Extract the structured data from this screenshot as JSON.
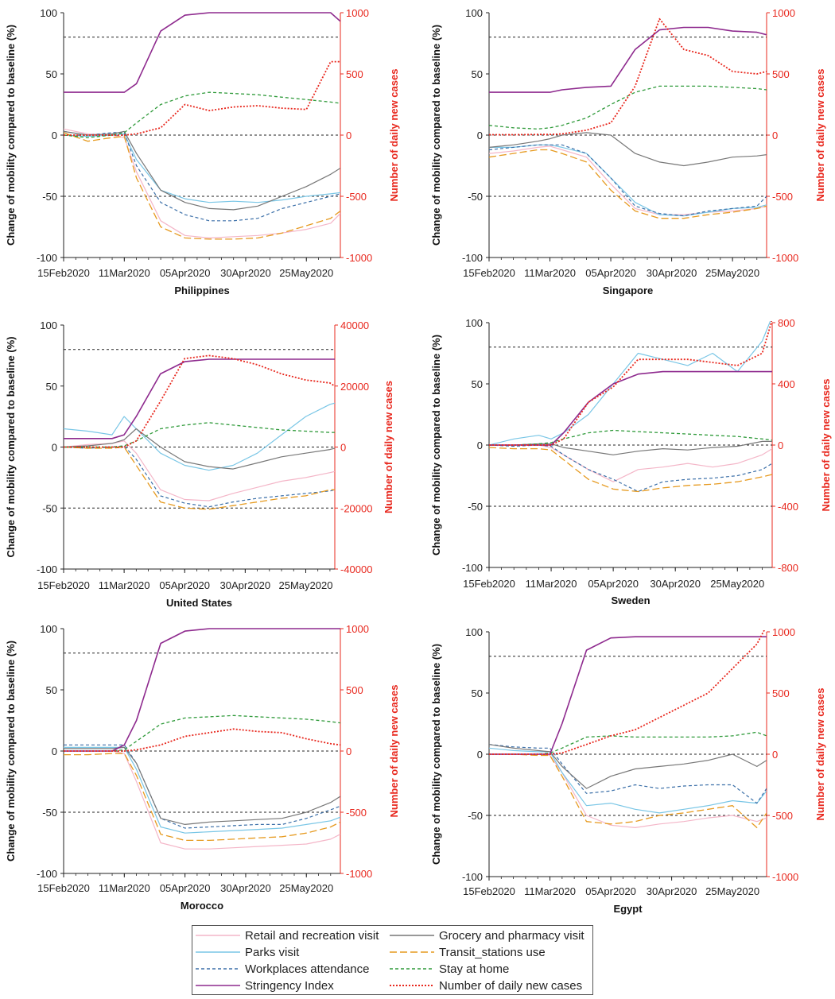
{
  "series_styles": [
    {
      "key": "retail",
      "color": "#f4b6c8",
      "dash": "",
      "width": 1.2
    },
    {
      "key": "parks",
      "color": "#79c6e6",
      "dash": "",
      "width": 1.2
    },
    {
      "key": "workplaces",
      "color": "#3b6fa8",
      "dash": "4,3",
      "width": 1.2
    },
    {
      "key": "stringency",
      "color": "#8e2a8e",
      "dash": "",
      "width": 1.6
    },
    {
      "key": "grocery",
      "color": "#777777",
      "dash": "",
      "width": 1.2
    },
    {
      "key": "transit",
      "color": "#e69a1f",
      "dash": "9,4",
      "width": 1.3
    },
    {
      "key": "home",
      "color": "#2f9a3a",
      "dash": "4,3",
      "width": 1.3
    },
    {
      "key": "cases",
      "color": "#e8281e",
      "dash": "2,2",
      "width": 1.8
    }
  ],
  "legend": {
    "items": [
      {
        "label": "Retail and recreation visit",
        "color": "#f4b6c8",
        "dash": ""
      },
      {
        "label": "Grocery and pharmacy visit",
        "color": "#777777",
        "dash": ""
      },
      {
        "label": "Parks visit",
        "color": "#79c6e6",
        "dash": ""
      },
      {
        "label": "Transit_stations use",
        "color": "#e69a1f",
        "dash": "9,4"
      },
      {
        "label": "Workplaces attendance",
        "color": "#3b6fa8",
        "dash": "4,3"
      },
      {
        "label": "Stay at home",
        "color": "#2f9a3a",
        "dash": "4,3"
      },
      {
        "label": "Stringency Index",
        "color": "#8e2a8e",
        "dash": ""
      },
      {
        "label": "Number of daily new cases",
        "color": "#e8281e",
        "dash": "2,2"
      }
    ]
  },
  "chart_data": [
    {
      "type": "line",
      "title": "Philippines",
      "ylabel": "Change of mobility compared to baseline (%)",
      "y2label": "Number of daily new cases",
      "x_ticks": [
        "15Feb2020",
        "11Mar2020",
        "05Apr2020",
        "30Apr2020",
        "25May2020"
      ],
      "x": [
        0,
        10,
        20,
        25,
        30,
        40,
        50,
        60,
        70,
        80,
        90,
        100,
        110,
        114
      ],
      "ylim": [
        -100,
        100
      ],
      "y2lim": [
        -1000,
        1000
      ],
      "yticks": [
        -100,
        -50,
        0,
        50,
        100
      ],
      "y2ticks": [
        -1000,
        -500,
        0,
        500,
        1000
      ],
      "hlines": [
        80,
        0,
        -50
      ],
      "series": {
        "retail": [
          5,
          1,
          0,
          -2,
          -30,
          -70,
          -82,
          -84,
          -83,
          -82,
          -80,
          -77,
          -72,
          -64
        ],
        "grocery": [
          3,
          0,
          1,
          3,
          -15,
          -45,
          -55,
          -60,
          -61,
          -58,
          -50,
          -42,
          -32,
          -27
        ],
        "parks": [
          0,
          -1,
          0,
          1,
          -20,
          -45,
          -52,
          -55,
          -54,
          -55,
          -53,
          -50,
          -48,
          -47
        ],
        "transit": [
          2,
          -5,
          -2,
          -1,
          -35,
          -75,
          -84,
          -85,
          -85,
          -84,
          -80,
          -74,
          -68,
          -62
        ],
        "workplaces": [
          3,
          0,
          2,
          2,
          -25,
          -55,
          -65,
          -70,
          -70,
          -68,
          -60,
          -55,
          -50,
          -48
        ],
        "home": [
          0,
          -2,
          0,
          2,
          10,
          25,
          32,
          35,
          34,
          33,
          31,
          29,
          27,
          26
        ],
        "stringency": [
          35,
          35,
          35,
          35,
          42,
          85,
          98,
          100,
          100,
          100,
          100,
          100,
          100,
          93
        ],
        "cases": [
          0,
          0,
          0,
          0,
          10,
          60,
          250,
          200,
          230,
          240,
          220,
          210,
          600,
          600
        ]
      }
    },
    {
      "type": "line",
      "title": "Singapore",
      "ylabel": "Change of mobility compared to baseline (%)",
      "y2label": "Number of daily new cases",
      "x_ticks": [
        "15Feb2020",
        "11Mar2020",
        "05Apr2020",
        "30Apr2020",
        "25May2020"
      ],
      "x": [
        0,
        10,
        20,
        25,
        30,
        40,
        50,
        60,
        70,
        80,
        90,
        100,
        110,
        114
      ],
      "ylim": [
        -100,
        100
      ],
      "y2lim": [
        -1000,
        1000
      ],
      "yticks": [
        -100,
        -50,
        0,
        50,
        100
      ],
      "y2ticks": [
        -1000,
        -500,
        0,
        500,
        1000
      ],
      "hlines": [
        80,
        0,
        -50
      ],
      "series": {
        "retail": [
          -15,
          -13,
          -10,
          -9,
          -12,
          -18,
          -40,
          -60,
          -65,
          -65,
          -63,
          -62,
          -60,
          -58
        ],
        "grocery": [
          -10,
          -8,
          -5,
          -3,
          0,
          2,
          0,
          -15,
          -22,
          -25,
          -22,
          -18,
          -17,
          -16
        ],
        "parks": [
          -10,
          -10,
          -8,
          -8,
          -10,
          -15,
          -35,
          -55,
          -65,
          -66,
          -63,
          -60,
          -59,
          -57
        ],
        "transit": [
          -18,
          -15,
          -12,
          -12,
          -15,
          -22,
          -45,
          -62,
          -68,
          -68,
          -65,
          -63,
          -60,
          -58
        ],
        "workplaces": [
          -12,
          -10,
          -8,
          -8,
          -8,
          -15,
          -35,
          -58,
          -64,
          -66,
          -62,
          -60,
          -58,
          -50
        ],
        "home": [
          8,
          6,
          5,
          6,
          8,
          14,
          25,
          35,
          40,
          40,
          40,
          39,
          38,
          37
        ],
        "stringency": [
          35,
          35,
          35,
          35,
          37,
          39,
          40,
          70,
          86,
          88,
          88,
          85,
          84,
          82
        ],
        "cases": [
          3,
          3,
          5,
          5,
          10,
          40,
          100,
          400,
          950,
          700,
          650,
          520,
          500,
          520
        ]
      }
    },
    {
      "type": "line",
      "title": "United States",
      "ylabel": "Change of mobility compared to baseline (%)",
      "y2label": "Number of daily new cases",
      "x_ticks": [
        "15Feb2020",
        "11Mar2020",
        "05Apr2020",
        "30Apr2020",
        "25May2020"
      ],
      "x": [
        0,
        10,
        20,
        25,
        30,
        40,
        50,
        60,
        70,
        80,
        90,
        100,
        110,
        112
      ],
      "ylim": [
        -100,
        100
      ],
      "y2lim": [
        -40000,
        40000
      ],
      "yticks": [
        -100,
        -50,
        0,
        50,
        100
      ],
      "y2ticks": [
        -40000,
        -20000,
        0,
        20000,
        40000
      ],
      "hlines": [
        80,
        0,
        -50
      ],
      "series": {
        "retail": [
          0,
          2,
          3,
          5,
          -5,
          -35,
          -43,
          -44,
          -38,
          -33,
          -28,
          -25,
          -21,
          -20
        ],
        "grocery": [
          0,
          1,
          3,
          6,
          15,
          0,
          -12,
          -16,
          -18,
          -13,
          -8,
          -5,
          -2,
          -1
        ],
        "parks": [
          15,
          13,
          10,
          25,
          15,
          -5,
          -15,
          -19,
          -15,
          -5,
          10,
          25,
          35,
          36
        ],
        "transit": [
          0,
          -1,
          -1,
          0,
          -15,
          -45,
          -50,
          -51,
          -48,
          -45,
          -42,
          -40,
          -35,
          -35
        ],
        "workplaces": [
          0,
          -1,
          0,
          1,
          -10,
          -40,
          -46,
          -49,
          -45,
          -42,
          -40,
          -38,
          -36,
          -35
        ],
        "home": [
          0,
          0,
          0,
          1,
          5,
          15,
          18,
          20,
          18,
          16,
          14,
          13,
          12,
          12
        ],
        "stringency": [
          7,
          7,
          7,
          10,
          25,
          60,
          70,
          72,
          72,
          72,
          72,
          72,
          72,
          72
        ],
        "cases": [
          0,
          0,
          0,
          0,
          2000,
          15000,
          29000,
          30000,
          29000,
          27000,
          24000,
          22000,
          21000,
          20000
        ]
      }
    },
    {
      "type": "line",
      "title": "Sweden",
      "ylabel": "Change of mobility compared to baseline (%)",
      "y2label": "Number of daily new cases",
      "x_ticks": [
        "15Feb2020",
        "11Mar2020",
        "05Apr2020",
        "30Apr2020",
        "25May2020"
      ],
      "x": [
        0,
        10,
        20,
        25,
        30,
        40,
        50,
        60,
        70,
        80,
        90,
        100,
        110,
        114
      ],
      "ylim": [
        -100,
        100
      ],
      "y2lim": [
        -800,
        800
      ],
      "yticks": [
        -100,
        -50,
        0,
        50,
        100
      ],
      "y2ticks": [
        -800,
        -400,
        0,
        400,
        800
      ],
      "hlines": [
        80,
        0,
        -50
      ],
      "series": {
        "retail": [
          0,
          0,
          0,
          -2,
          -8,
          -20,
          -30,
          -20,
          -18,
          -15,
          -18,
          -15,
          -8,
          -3
        ],
        "grocery": [
          0,
          0,
          1,
          1,
          -2,
          -5,
          -8,
          -5,
          -3,
          -4,
          -2,
          -1,
          3,
          3
        ],
        "parks": [
          0,
          5,
          8,
          5,
          10,
          25,
          50,
          75,
          70,
          65,
          75,
          60,
          85,
          105
        ],
        "transit": [
          -2,
          -3,
          -3,
          -4,
          -12,
          -28,
          -36,
          -38,
          -35,
          -33,
          -32,
          -30,
          -26,
          -24
        ],
        "workplaces": [
          0,
          -1,
          0,
          -1,
          -8,
          -20,
          -28,
          -38,
          -30,
          -28,
          -27,
          -25,
          -20,
          -15
        ],
        "home": [
          0,
          0,
          1,
          2,
          5,
          10,
          12,
          11,
          10,
          9,
          8,
          7,
          5,
          4
        ],
        "stringency": [
          0,
          0,
          0,
          0,
          10,
          35,
          50,
          58,
          60,
          60,
          60,
          60,
          60,
          60
        ],
        "cases": [
          0,
          0,
          0,
          0,
          40,
          280,
          380,
          560,
          560,
          560,
          540,
          520,
          600,
          820
        ]
      }
    },
    {
      "type": "line",
      "title": "Morocco",
      "ylabel": "Change of mobility compared to baseline (%)",
      "y2label": "Number of daily new cases",
      "x_ticks": [
        "15Feb2020",
        "11Mar2020",
        "05Apr2020",
        "30Apr2020",
        "25May2020"
      ],
      "x": [
        0,
        10,
        20,
        25,
        30,
        40,
        50,
        60,
        70,
        80,
        90,
        100,
        110,
        114
      ],
      "ylim": [
        -100,
        100
      ],
      "y2lim": [
        -1000,
        1000
      ],
      "yticks": [
        -100,
        -50,
        0,
        50,
        100
      ],
      "y2ticks": [
        -1000,
        -500,
        0,
        500,
        1000
      ],
      "hlines": [
        80,
        0,
        -50
      ],
      "series": {
        "retail": [
          0,
          0,
          0,
          -2,
          -25,
          -75,
          -80,
          -80,
          -79,
          -78,
          -77,
          -76,
          -72,
          -68
        ],
        "grocery": [
          2,
          2,
          2,
          3,
          -10,
          -55,
          -60,
          -58,
          -57,
          -56,
          -55,
          -50,
          -42,
          -37
        ],
        "parks": [
          3,
          3,
          3,
          3,
          -15,
          -62,
          -67,
          -66,
          -65,
          -64,
          -63,
          -60,
          -57,
          -54
        ],
        "transit": [
          -3,
          -3,
          -2,
          -2,
          -20,
          -68,
          -73,
          -73,
          -72,
          -71,
          -70,
          -67,
          -62,
          -58
        ],
        "workplaces": [
          5,
          5,
          5,
          5,
          -10,
          -55,
          -63,
          -62,
          -61,
          -60,
          -60,
          -55,
          -48,
          -45
        ],
        "home": [
          0,
          0,
          0,
          1,
          8,
          22,
          27,
          28,
          29,
          28,
          27,
          26,
          24,
          23
        ],
        "stringency": [
          0,
          0,
          0,
          5,
          25,
          88,
          98,
          100,
          100,
          100,
          100,
          100,
          100,
          100
        ],
        "cases": [
          0,
          0,
          0,
          0,
          10,
          50,
          120,
          150,
          180,
          160,
          150,
          100,
          60,
          50
        ]
      }
    },
    {
      "type": "line",
      "title": "Egypt",
      "ylabel": "Change of mobility compared to baseline (%)",
      "y2label": "Number of daily new cases",
      "x_ticks": [
        "15Feb2020",
        "11Mar2020",
        "05Apr2020",
        "30Apr2020",
        "25May2020"
      ],
      "x": [
        0,
        10,
        20,
        25,
        30,
        40,
        50,
        60,
        70,
        80,
        90,
        100,
        110,
        114
      ],
      "ylim": [
        -100,
        100
      ],
      "y2lim": [
        -1000,
        1000
      ],
      "yticks": [
        -100,
        -50,
        0,
        50,
        100
      ],
      "y2ticks": [
        -1000,
        -500,
        0,
        500,
        1000
      ],
      "hlines": [
        80,
        0,
        -50
      ],
      "series": {
        "retail": [
          0,
          0,
          0,
          -1,
          -15,
          -50,
          -58,
          -60,
          -57,
          -55,
          -52,
          -50,
          -55,
          -52
        ],
        "grocery": [
          8,
          5,
          3,
          2,
          -10,
          -28,
          -18,
          -12,
          -10,
          -8,
          -5,
          0,
          -10,
          -5
        ],
        "parks": [
          5,
          3,
          2,
          2,
          -15,
          -42,
          -40,
          -45,
          -48,
          -45,
          -42,
          -38,
          -40,
          -30
        ],
        "transit": [
          0,
          0,
          -1,
          -1,
          -18,
          -55,
          -57,
          -55,
          -50,
          -48,
          -45,
          -42,
          -60,
          -48
        ],
        "workplaces": [
          8,
          6,
          5,
          5,
          -8,
          -32,
          -30,
          -25,
          -28,
          -26,
          -25,
          -25,
          -40,
          -28
        ],
        "home": [
          0,
          0,
          0,
          1,
          5,
          14,
          15,
          14,
          14,
          14,
          14,
          15,
          18,
          15
        ],
        "stringency": [
          0,
          0,
          0,
          0,
          25,
          85,
          95,
          96,
          96,
          96,
          96,
          96,
          96,
          96
        ],
        "cases": [
          0,
          0,
          0,
          0,
          10,
          80,
          150,
          200,
          300,
          400,
          500,
          700,
          900,
          1050
        ]
      }
    }
  ]
}
